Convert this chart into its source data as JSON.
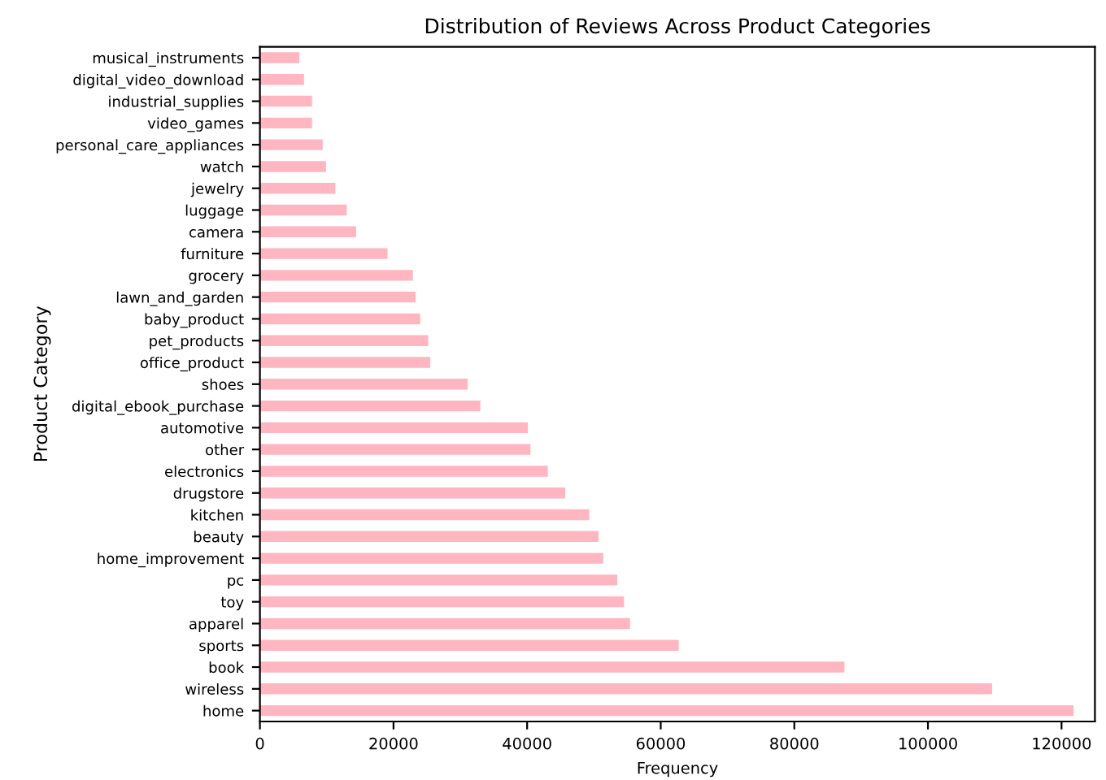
{
  "chart_data": {
    "type": "bar",
    "orientation": "horizontal",
    "title": "Distribution of Reviews Across Product Categories",
    "xlabel": "Frequency",
    "ylabel": "Product Category",
    "categories": [
      "musical_instruments",
      "digital_video_download",
      "industrial_supplies",
      "video_games",
      "personal_care_appliances",
      "watch",
      "jewelry",
      "luggage",
      "camera",
      "furniture",
      "grocery",
      "lawn_and_garden",
      "baby_product",
      "pet_products",
      "office_product",
      "shoes",
      "digital_ebook_purchase",
      "automotive",
      "other",
      "electronics",
      "drugstore",
      "kitchen",
      "beauty",
      "home_improvement",
      "pc",
      "toy",
      "apparel",
      "sports",
      "book",
      "wireless",
      "home"
    ],
    "values": [
      5900,
      6600,
      7800,
      7800,
      9400,
      9900,
      11300,
      13000,
      14400,
      19100,
      22900,
      23300,
      24000,
      25200,
      25500,
      31100,
      33000,
      40100,
      40500,
      43100,
      45700,
      49300,
      50700,
      51400,
      53500,
      54500,
      55400,
      62700,
      87500,
      109600,
      121800
    ],
    "color": "#ffb6c1",
    "xlim": [
      0,
      125000
    ],
    "xticks": [
      0,
      20000,
      40000,
      60000,
      80000,
      100000,
      120000
    ],
    "grid": false,
    "legend": false
  }
}
